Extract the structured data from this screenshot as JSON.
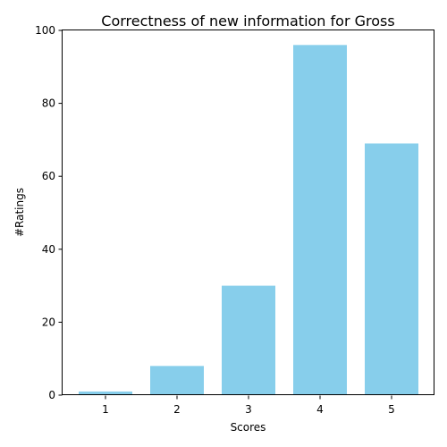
{
  "chart_data": {
    "type": "bar",
    "title": "Correctness of new information for Gross",
    "xlabel": "Scores",
    "ylabel": "#Ratings",
    "categories": [
      "1",
      "2",
      "3",
      "4",
      "5"
    ],
    "values": [
      1,
      8,
      30,
      96,
      69
    ],
    "ylim": [
      0,
      100
    ],
    "yticks": [
      0,
      20,
      40,
      60,
      80,
      100
    ],
    "grid": false,
    "bar_color": "#87CEEB"
  }
}
